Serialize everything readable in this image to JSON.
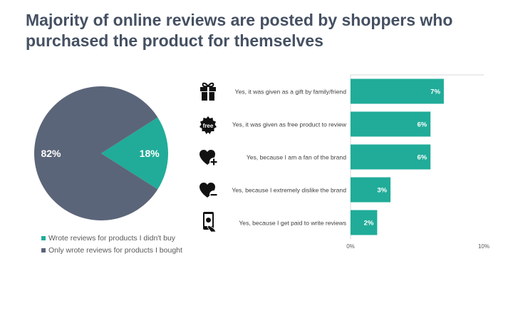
{
  "title": "Majority of online reviews are posted by shoppers who purchased the product for themselves",
  "colors": {
    "teal": "#20AC99",
    "slate": "#5B6579",
    "title": "#455062",
    "label": "#404040"
  },
  "icons": [
    "gift-icon",
    "free-badge-icon",
    "heart-plus-icon",
    "heart-minus-icon",
    "phone-money-icon"
  ],
  "free_icon_text": "free",
  "chart_data": [
    {
      "type": "pie",
      "slices": [
        {
          "label": "Wrote reviews for products I didn't buy",
          "value": 18,
          "display": "18%",
          "color": "#20AC99"
        },
        {
          "label": "Only wrote reviews for products I bought",
          "value": 82,
          "display": "82%",
          "color": "#5B6579"
        }
      ],
      "legend_position": "bottom-left"
    },
    {
      "type": "bar",
      "orientation": "horizontal",
      "categories": [
        "Yes, it was given as a gift by family/friend",
        "Yes, it was given as free product to review",
        "Yes, because I am a fan of the brand",
        "Yes, because I extremely dislike the brand",
        "Yes, because I get paid to write reviews"
      ],
      "values": [
        7,
        6,
        6,
        3,
        2
      ],
      "data_labels": [
        "7%",
        "6%",
        "6%",
        "3%",
        "2%"
      ],
      "xlim": [
        0,
        10
      ],
      "xticks": [
        "0%",
        "10%"
      ],
      "color": "#20AC99",
      "grid": false
    }
  ]
}
